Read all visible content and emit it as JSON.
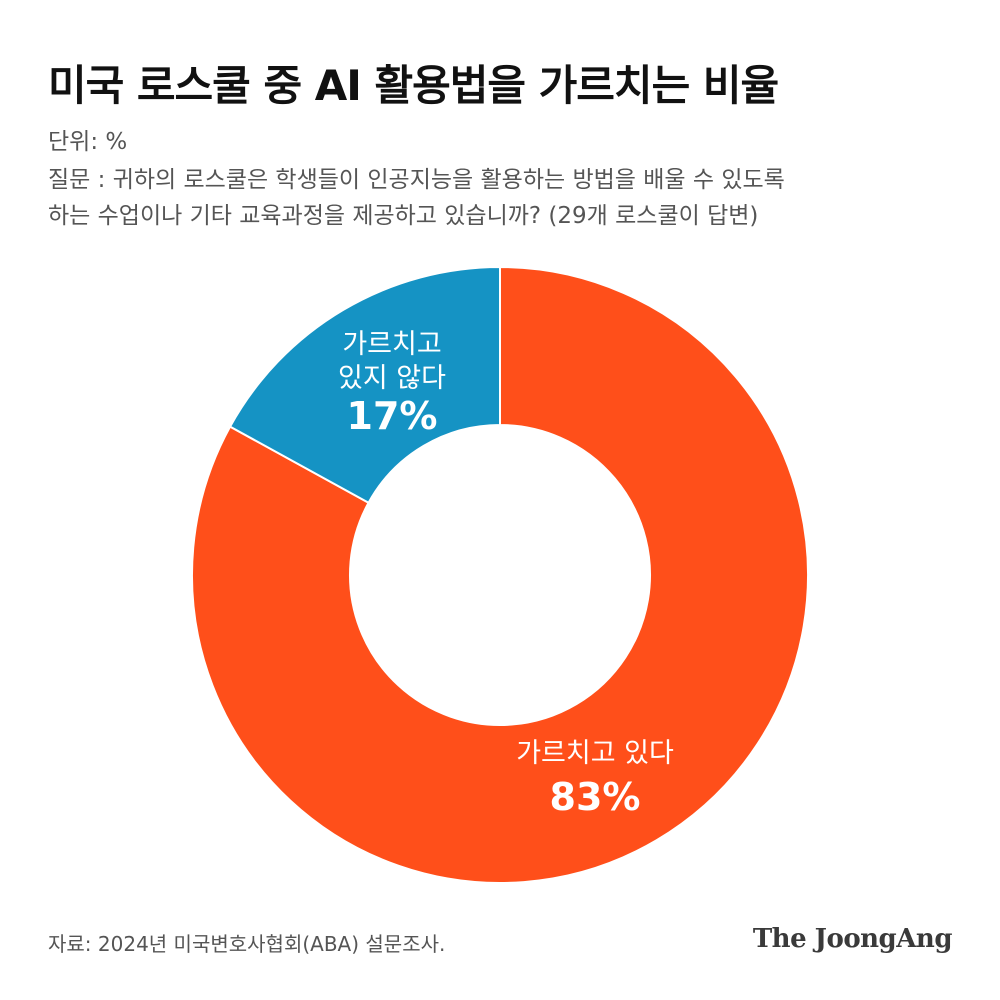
{
  "title": "미국 로스쿨 중 AI 활용법을 가르치는 비율",
  "unit": "단위: %",
  "question_lines": [
    "질문 : 귀하의 로스쿨은 학생들이 인공지능을 활용하는 방법을 배울 수 있도록",
    "하는 수업이나 기타 교육과정을 제공하고 있습니까? (29개 로스쿨이 답변)"
  ],
  "chart_data": {
    "type": "pie",
    "donut": true,
    "slices": [
      {
        "label_lines": [
          "가르치고 있다"
        ],
        "value": 83,
        "display": "83%",
        "color": "#ff4f1a"
      },
      {
        "label_lines": [
          "가르치고",
          "있지 않다"
        ],
        "value": 17,
        "display": "17%",
        "color": "#1593c4"
      }
    ],
    "start": "12 o'clock",
    "direction": "clockwise"
  },
  "source": "자료: 2024년 미국변호사협회(ABA) 설문조사.",
  "logo": "The JoongAng"
}
